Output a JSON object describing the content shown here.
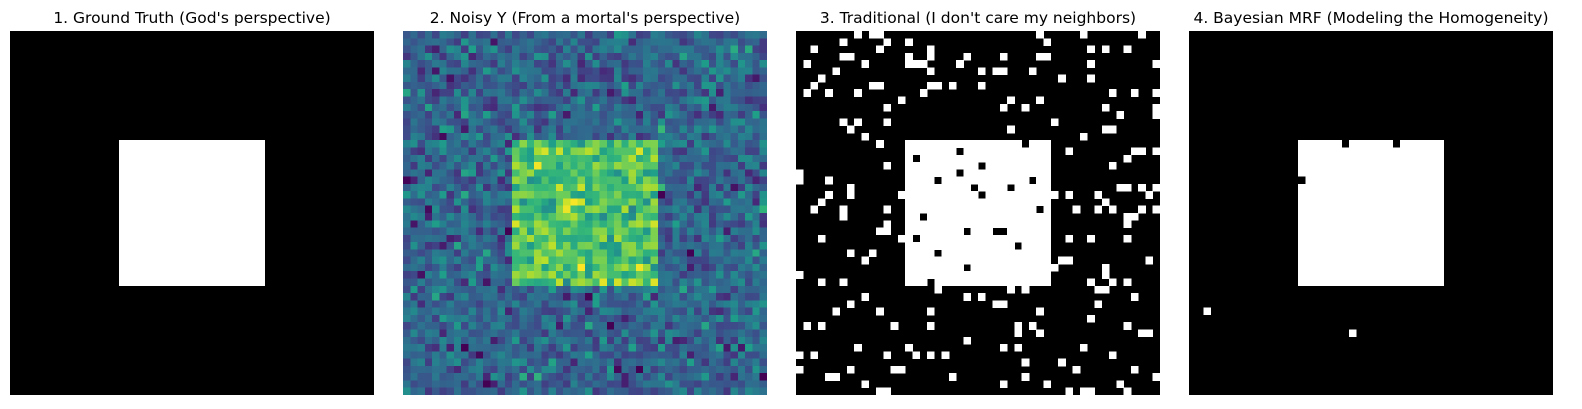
{
  "panels": [
    {
      "title": "1. Ground Truth (God's perspective)",
      "kind": "binary",
      "colors": {
        "background": "#000000",
        "foreground": "#ffffff"
      },
      "grid_size": 50,
      "square": {
        "col_start": 15,
        "col_end": 35,
        "row_start": 15,
        "row_end": 35
      }
    },
    {
      "title": "2. Noisy Y (From a mortal's perspective)",
      "kind": "noisy",
      "colormap": "viridis",
      "grid_size": 50,
      "square": {
        "col_start": 15,
        "col_end": 35,
        "row_start": 15,
        "row_end": 35
      }
    },
    {
      "title": "3. Traditional (I don't care my neighbors)",
      "kind": "binary-noisy",
      "colors": {
        "background": "#000000",
        "foreground": "#ffffff"
      },
      "grid_size": 50,
      "square": {
        "col_start": 15,
        "col_end": 35,
        "row_start": 15,
        "row_end": 35
      }
    },
    {
      "title": "4. Bayesian MRF (Modeling the Homogeneity)",
      "kind": "binary-clean",
      "colors": {
        "background": "#000000",
        "foreground": "#ffffff"
      },
      "grid_size": 50,
      "square": {
        "col_start": 15,
        "col_end": 35,
        "row_start": 15,
        "row_end": 35
      }
    }
  ]
}
